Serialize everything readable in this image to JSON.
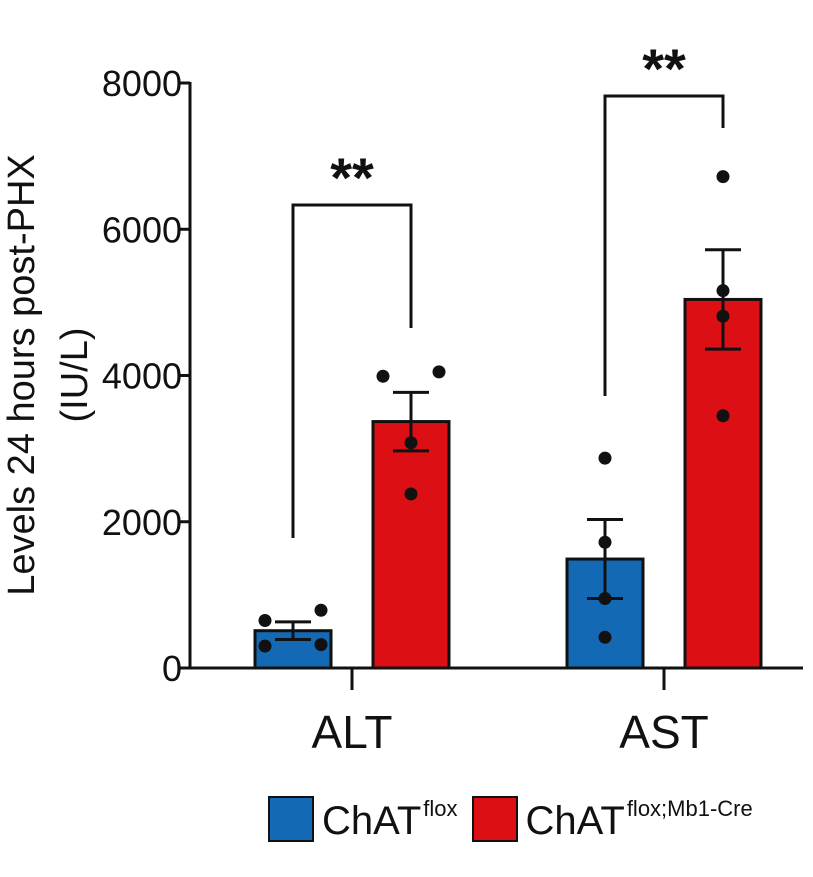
{
  "chart_data": {
    "type": "bar",
    "ylabel_line1": "Levels 24 hours post-PHX",
    "ylabel_line2": "(IU/L)",
    "categories": [
      "ALT",
      "AST"
    ],
    "ylim": [
      0,
      8000
    ],
    "yticks": [
      0,
      2000,
      4000,
      6000,
      8000
    ],
    "series": [
      {
        "name": "ChAT",
        "name_sup": "flox",
        "color": "#1469b4",
        "values": [
          510,
          1490
        ],
        "errors": [
          120,
          540
        ],
        "points": [
          [
            650,
            790,
            300,
            320
          ],
          [
            2870,
            1720,
            950,
            420
          ]
        ]
      },
      {
        "name": "ChAT",
        "name_sup": "flox;Mb1-Cre",
        "color": "#dc0f14",
        "values": [
          3370,
          5040
        ],
        "errors": [
          400,
          680
        ],
        "points": [
          [
            3990,
            4050,
            3080,
            2380
          ],
          [
            6720,
            5160,
            4810,
            3450
          ]
        ]
      }
    ],
    "significance": [
      {
        "category": "ALT",
        "label": "**"
      },
      {
        "category": "AST",
        "label": "**"
      }
    ]
  }
}
